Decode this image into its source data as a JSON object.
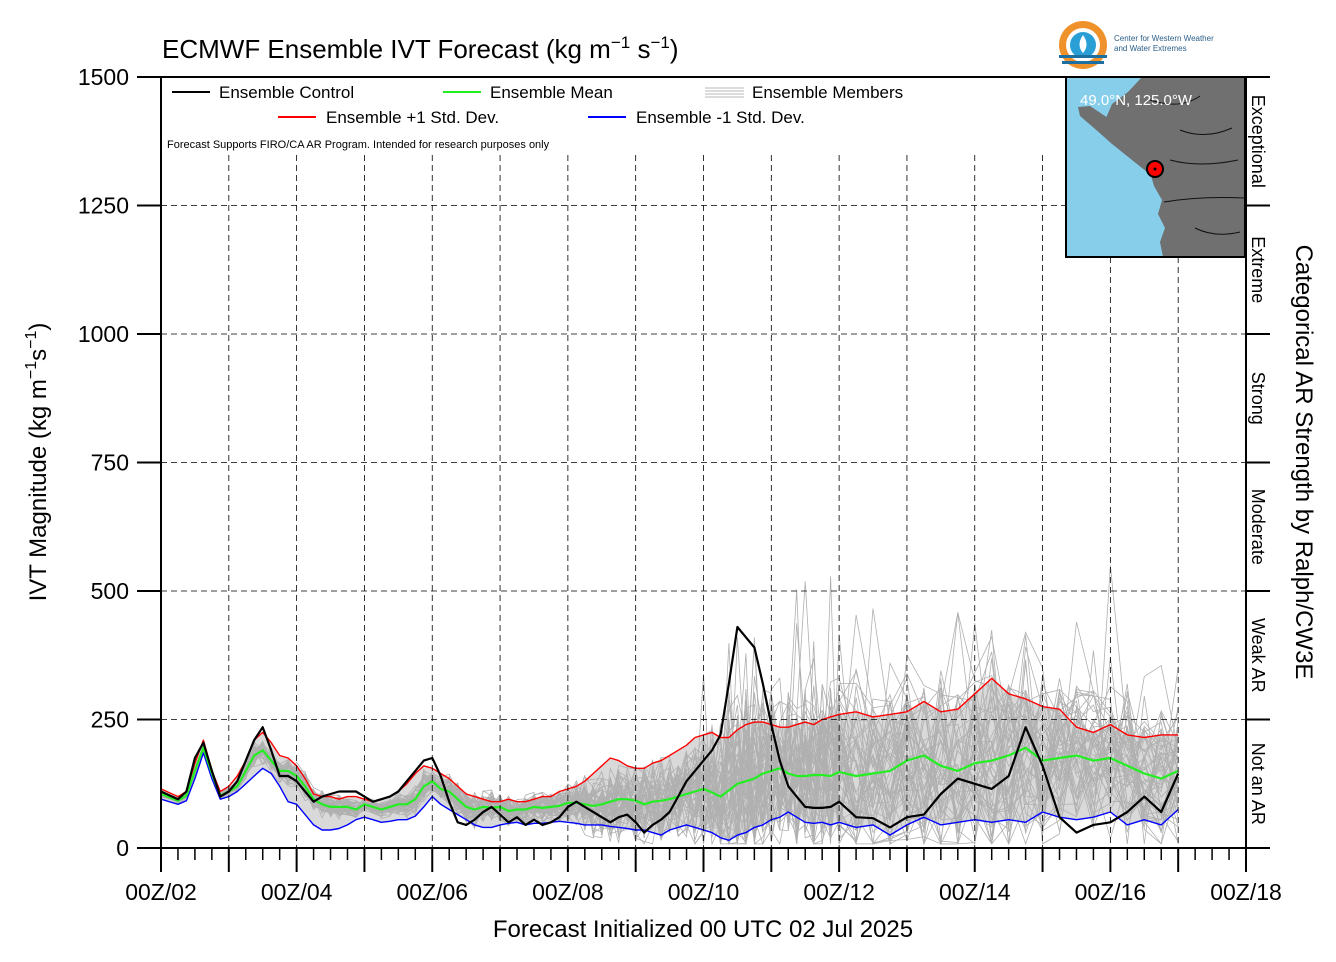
{
  "title": "ECMWF Ensemble IVT Forecast (kg m",
  "title_sup1": "−1",
  "title_mid": " s",
  "title_sup2": "−1",
  "title_end": ")",
  "ylabel_main": "IVT Magnitude (kg m",
  "ylabel_sup1": "−1",
  "ylabel_mid": "s",
  "ylabel_sup2": "−1",
  "ylabel_end": ")",
  "xlabel": "Forecast Initialized 00 UTC 02 Jul 2025",
  "right_axis_label": "Categorical AR Strength by Ralph/CW3E",
  "disclaimer": "Forecast Supports FIRO/CA AR Program. Intended for research purposes only",
  "logo": {
    "line1": "Center for Western Weather",
    "line2": "and Water Extremes"
  },
  "inset_map": {
    "location_label": "49.0°N, 125.0°W",
    "ocean_color": "#87ceeb",
    "land_color": "#707070",
    "marker_color": "#ff0000"
  },
  "legend": {
    "control": "Ensemble Control",
    "mean": "Ensemble Mean",
    "members": "Ensemble Members",
    "plus_std": "Ensemble +1 Std. Dev.",
    "minus_std": "Ensemble -1 Std. Dev."
  },
  "colors": {
    "control": "#000000",
    "mean": "#22ee22",
    "plus_std": "#ff0000",
    "minus_std": "#0000ff",
    "members": "#b0b0b0",
    "spread_fill": "#d9d9d9"
  },
  "categories": [
    {
      "label": "Not an AR",
      "range": [
        0,
        250
      ]
    },
    {
      "label": "Weak AR",
      "range": [
        250,
        500
      ]
    },
    {
      "label": "Moderate",
      "range": [
        500,
        750
      ]
    },
    {
      "label": "Strong",
      "range": [
        750,
        1000
      ]
    },
    {
      "label": "Extreme",
      "range": [
        1000,
        1250
      ]
    },
    {
      "label": "Exceptional",
      "range": [
        1250,
        1500
      ]
    }
  ],
  "chart_data": {
    "type": "line",
    "title": "ECMWF Ensemble IVT Forecast (kg m⁻¹ s⁻¹)",
    "xlabel": "Forecast Initialized 00 UTC 02 Jul 2025",
    "ylabel": "IVT Magnitude (kg m⁻¹s⁻¹)",
    "x_unit": "forecast hours from 00Z 02 Jul 2025",
    "xlim": [
      0,
      384
    ],
    "ylim": [
      0,
      1500
    ],
    "x_ticks": [
      0,
      48,
      96,
      144,
      192,
      240,
      288,
      336,
      384
    ],
    "x_tick_labels": [
      "00Z/02",
      "00Z/04",
      "00Z/06",
      "00Z/08",
      "00Z/10",
      "00Z/12",
      "00Z/14",
      "00Z/16",
      "00Z/18"
    ],
    "y_ticks": [
      0,
      250,
      500,
      750,
      1000,
      1250,
      1500
    ],
    "grid": true,
    "legend_position": "top-left",
    "series": [
      {
        "name": "Ensemble Control",
        "x": [
          0,
          6,
          9,
          12,
          15,
          18,
          21,
          24,
          27,
          30,
          33,
          36,
          39,
          42,
          45,
          48,
          51,
          54,
          57,
          60,
          63,
          66,
          69,
          72,
          75,
          78,
          81,
          84,
          87,
          90,
          93,
          96,
          99,
          102,
          105,
          108,
          111,
          114,
          117,
          120,
          123,
          126,
          129,
          132,
          135,
          138,
          141,
          144,
          147,
          150,
          153,
          156,
          159,
          162,
          165,
          168,
          171,
          174,
          177,
          180,
          183,
          186,
          189,
          192,
          195,
          198,
          201,
          204,
          207,
          210,
          213,
          216,
          219,
          222,
          225,
          228,
          231,
          234,
          237,
          240,
          246,
          252,
          258,
          264,
          270,
          276,
          282,
          288,
          294,
          300,
          306,
          312,
          318,
          324,
          330,
          336,
          342,
          348,
          354,
          360
        ],
        "y": [
          110,
          95,
          110,
          175,
          205,
          150,
          100,
          110,
          130,
          170,
          210,
          235,
          190,
          140,
          140,
          130,
          110,
          90,
          100,
          105,
          110,
          110,
          110,
          100,
          90,
          95,
          100,
          110,
          130,
          150,
          170,
          175,
          140,
          90,
          50,
          45,
          55,
          70,
          80,
          65,
          50,
          60,
          45,
          55,
          45,
          50,
          60,
          80,
          90,
          80,
          70,
          60,
          50,
          60,
          65,
          50,
          30,
          45,
          55,
          70,
          100,
          130,
          150,
          170,
          190,
          220,
          320,
          430,
          410,
          390,
          320,
          240,
          170,
          120,
          100,
          80,
          78,
          78,
          80,
          90,
          60,
          58,
          40,
          60,
          65,
          105,
          135,
          125,
          115,
          140,
          235,
          160,
          60,
          30,
          45,
          50,
          70,
          100,
          70,
          145
        ]
      },
      {
        "name": "Ensemble Mean",
        "x": [
          0,
          6,
          9,
          12,
          15,
          18,
          21,
          24,
          27,
          30,
          33,
          36,
          39,
          42,
          45,
          48,
          51,
          54,
          57,
          60,
          63,
          66,
          69,
          72,
          75,
          78,
          81,
          84,
          87,
          90,
          93,
          96,
          99,
          102,
          105,
          108,
          111,
          114,
          117,
          120,
          123,
          126,
          129,
          132,
          135,
          138,
          141,
          144,
          147,
          150,
          153,
          156,
          159,
          162,
          165,
          168,
          171,
          174,
          177,
          180,
          183,
          186,
          189,
          192,
          195,
          198,
          201,
          204,
          207,
          210,
          213,
          216,
          219,
          222,
          225,
          228,
          231,
          234,
          237,
          240,
          246,
          252,
          258,
          264,
          270,
          276,
          282,
          288,
          294,
          300,
          306,
          312,
          318,
          324,
          330,
          336,
          342,
          348,
          354,
          360
        ],
        "y": [
          105,
          92,
          102,
          150,
          195,
          145,
          102,
          110,
          120,
          150,
          180,
          190,
          170,
          150,
          150,
          140,
          120,
          95,
          85,
          80,
          80,
          80,
          75,
          85,
          80,
          75,
          80,
          85,
          85,
          95,
          120,
          130,
          115,
          110,
          95,
          80,
          75,
          80,
          78,
          80,
          72,
          75,
          75,
          80,
          78,
          80,
          82,
          88,
          88,
          85,
          82,
          85,
          90,
          95,
          95,
          92,
          85,
          90,
          92,
          95,
          100,
          105,
          110,
          115,
          108,
          100,
          112,
          125,
          130,
          135,
          145,
          150,
          155,
          145,
          140,
          140,
          142,
          142,
          140,
          148,
          140,
          145,
          150,
          170,
          180,
          160,
          150,
          165,
          170,
          180,
          195,
          170,
          175,
          180,
          170,
          175,
          160,
          145,
          135,
          150
        ]
      },
      {
        "name": "Ensemble +1 Std. Dev.",
        "x": [
          0,
          6,
          9,
          12,
          15,
          18,
          21,
          24,
          27,
          30,
          33,
          36,
          39,
          42,
          45,
          48,
          51,
          54,
          57,
          60,
          63,
          66,
          69,
          72,
          75,
          78,
          81,
          84,
          87,
          90,
          93,
          96,
          99,
          102,
          105,
          108,
          111,
          114,
          117,
          120,
          123,
          126,
          129,
          132,
          135,
          138,
          141,
          144,
          147,
          150,
          153,
          156,
          159,
          162,
          165,
          168,
          171,
          174,
          177,
          180,
          183,
          186,
          189,
          192,
          195,
          198,
          201,
          204,
          207,
          210,
          213,
          216,
          219,
          222,
          225,
          228,
          231,
          234,
          237,
          240,
          246,
          252,
          258,
          264,
          270,
          276,
          282,
          288,
          294,
          300,
          306,
          312,
          318,
          324,
          330,
          336,
          342,
          348,
          354,
          360
        ],
        "y": [
          115,
          100,
          110,
          165,
          210,
          150,
          110,
          120,
          140,
          170,
          210,
          225,
          205,
          180,
          175,
          160,
          135,
          105,
          100,
          100,
          95,
          100,
          100,
          95,
          90,
          95,
          100,
          110,
          125,
          145,
          160,
          155,
          145,
          135,
          120,
          105,
          100,
          95,
          90,
          90,
          95,
          90,
          90,
          95,
          100,
          100,
          110,
          115,
          120,
          130,
          145,
          160,
          175,
          170,
          160,
          155,
          155,
          165,
          170,
          180,
          190,
          200,
          215,
          220,
          225,
          215,
          215,
          230,
          240,
          245,
          245,
          240,
          235,
          235,
          240,
          245,
          240,
          250,
          255,
          260,
          265,
          255,
          260,
          265,
          285,
          265,
          270,
          300,
          330,
          300,
          290,
          275,
          270,
          235,
          225,
          240,
          220,
          215,
          220,
          220
        ]
      },
      {
        "name": "Ensemble -1 Std. Dev.",
        "x": [
          0,
          6,
          9,
          12,
          15,
          18,
          21,
          24,
          27,
          30,
          33,
          36,
          39,
          42,
          45,
          48,
          51,
          54,
          57,
          60,
          63,
          66,
          69,
          72,
          75,
          78,
          81,
          84,
          87,
          90,
          93,
          96,
          99,
          102,
          105,
          108,
          111,
          114,
          117,
          120,
          123,
          126,
          129,
          132,
          135,
          138,
          141,
          144,
          147,
          150,
          153,
          156,
          159,
          162,
          165,
          168,
          171,
          174,
          177,
          180,
          183,
          186,
          189,
          192,
          195,
          198,
          201,
          204,
          207,
          210,
          213,
          216,
          219,
          222,
          225,
          228,
          231,
          234,
          237,
          240,
          246,
          252,
          258,
          264,
          270,
          276,
          282,
          288,
          294,
          300,
          306,
          312,
          318,
          324,
          330,
          336,
          342,
          348,
          354,
          360
        ],
        "y": [
          95,
          85,
          92,
          135,
          185,
          135,
          95,
          100,
          110,
          125,
          140,
          155,
          145,
          120,
          90,
          85,
          65,
          45,
          35,
          35,
          38,
          45,
          55,
          60,
          55,
          50,
          52,
          55,
          55,
          62,
          80,
          100,
          85,
          75,
          65,
          55,
          45,
          40,
          40,
          45,
          48,
          50,
          45,
          48,
          48,
          50,
          52,
          50,
          48,
          45,
          45,
          45,
          42,
          40,
          38,
          35,
          35,
          30,
          25,
          35,
          40,
          45,
          40,
          35,
          30,
          20,
          15,
          25,
          30,
          40,
          45,
          55,
          60,
          70,
          60,
          50,
          48,
          50,
          45,
          50,
          40,
          45,
          25,
          45,
          60,
          45,
          50,
          55,
          50,
          55,
          50,
          70,
          60,
          55,
          60,
          70,
          45,
          55,
          45,
          75
        ]
      }
    ],
    "members_summary": "50 gray ensemble member traces spanning roughly 20–660 kg m⁻¹ s⁻¹"
  }
}
